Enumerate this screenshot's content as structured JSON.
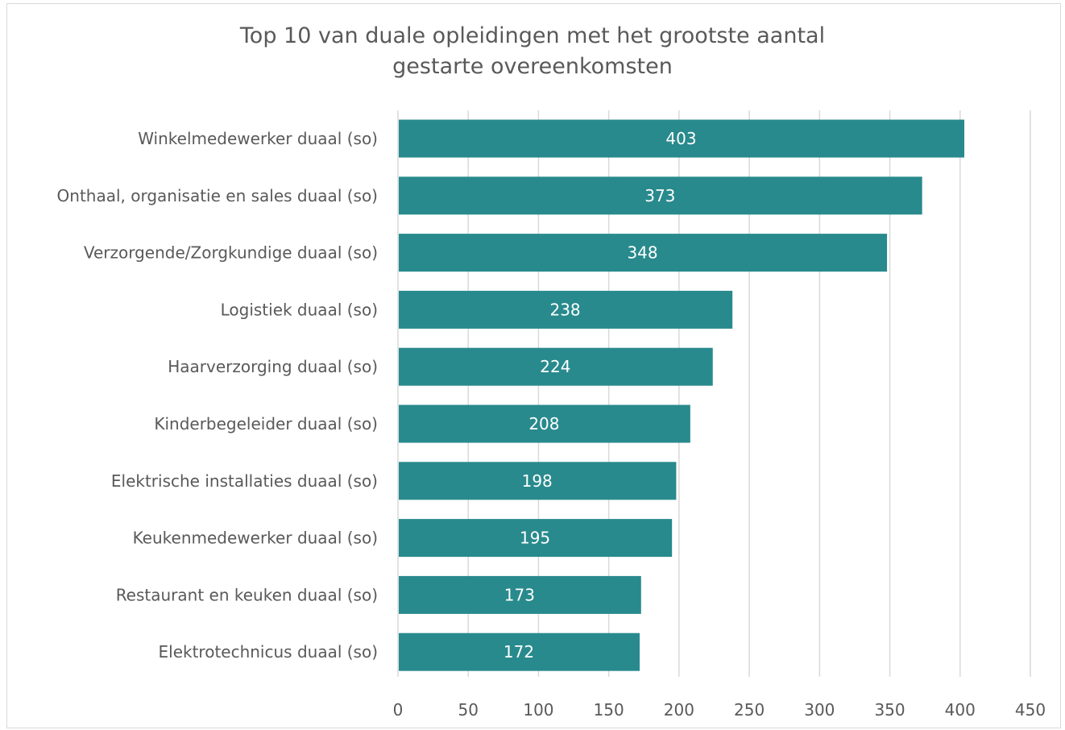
{
  "chart_data": {
    "type": "bar",
    "orientation": "horizontal",
    "title": "Top 10 van duale opleidingen met het grootste aantal gestarte overeenkomsten",
    "title_lines": [
      "Top 10 van duale opleidingen met het grootste aantal",
      "gestarte overeenkomsten"
    ],
    "categories": [
      "Winkelmedewerker duaal (so)",
      "Onthaal, organisatie en sales duaal (so)",
      "Verzorgende/Zorgkundige duaal (so)",
      "Logistiek duaal (so)",
      "Haarverzorging duaal (so)",
      "Kinderbegeleider duaal (so)",
      "Elektrische installaties duaal (so)",
      "Keukenmedewerker duaal (so)",
      "Restaurant en keuken duaal (so)",
      "Elektrotechnicus duaal (so)"
    ],
    "values": [
      403,
      373,
      348,
      238,
      224,
      208,
      198,
      195,
      173,
      172
    ],
    "data_labels": [
      "403",
      "373",
      "348",
      "238",
      "224",
      "208",
      "198",
      "195",
      "173",
      "172"
    ],
    "xlim": [
      0,
      450
    ],
    "xticks": [
      "0",
      "50",
      "100",
      "150",
      "200",
      "250",
      "300",
      "350",
      "400",
      "450"
    ],
    "xlabel": "",
    "ylabel": "",
    "grid": true,
    "legend": "none",
    "bar_color": "#288A8D",
    "grid_color": "#d9d9d9",
    "text_color": "#595959"
  }
}
